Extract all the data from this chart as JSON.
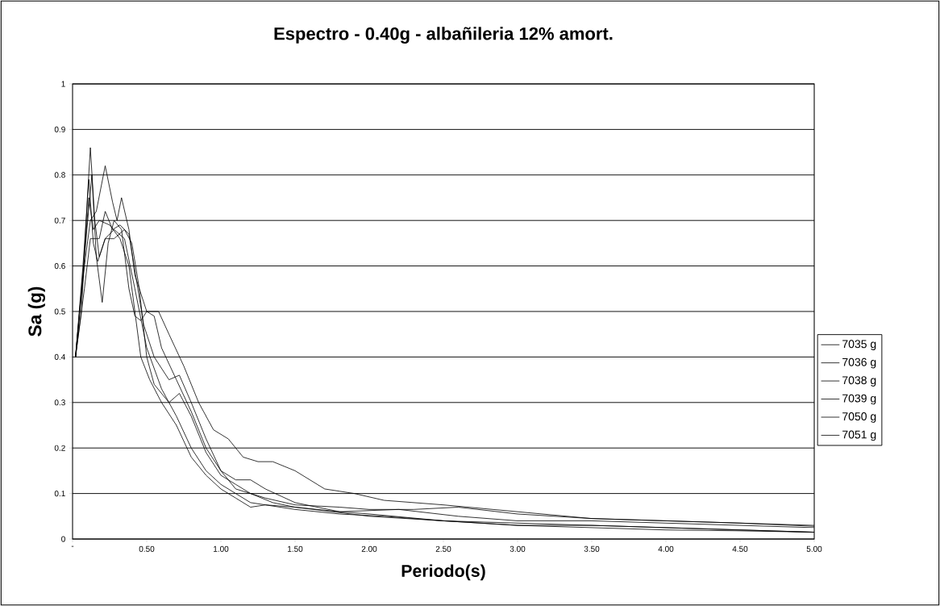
{
  "chart_data": {
    "type": "line",
    "title": "Espectro - 0.40g - albañileria 12% amort.",
    "xlabel": "Periodo(s)",
    "ylabel": "Sa (g)",
    "xlim": [
      0,
      5
    ],
    "ylim": [
      0,
      1
    ],
    "xticks": [
      {
        "value": 0,
        "label": "-"
      },
      {
        "value": 0.5,
        "label": "0.50"
      },
      {
        "value": 1,
        "label": "1.00"
      },
      {
        "value": 1.5,
        "label": "1.50"
      },
      {
        "value": 2,
        "label": "2.00"
      },
      {
        "value": 2.5,
        "label": "2.50"
      },
      {
        "value": 3,
        "label": "3.00"
      },
      {
        "value": 3.5,
        "label": "3.50"
      },
      {
        "value": 4,
        "label": "4.00"
      },
      {
        "value": 4.5,
        "label": "4.50"
      },
      {
        "value": 5,
        "label": "5.00"
      }
    ],
    "yticks": [
      0,
      0.1,
      0.2,
      0.3,
      0.4,
      0.5,
      0.6,
      0.7,
      0.8,
      0.9,
      1
    ],
    "grid": "y",
    "legend": "right",
    "marker": "none",
    "line_style": "solid",
    "series": [
      {
        "name": "7035 g",
        "color": "#000000",
        "x": [
          0.02,
          0.06,
          0.1,
          0.12,
          0.15,
          0.18,
          0.22,
          0.28,
          0.35,
          0.42,
          0.5,
          0.6,
          0.7,
          0.8,
          0.9,
          1.0,
          1.1,
          1.2,
          1.3,
          1.5,
          1.8,
          2.0,
          2.5,
          3.0,
          3.5,
          4.0,
          4.5,
          5.0
        ],
        "values": [
          0.4,
          0.5,
          0.75,
          0.86,
          0.7,
          0.62,
          0.66,
          0.68,
          0.66,
          0.55,
          0.42,
          0.33,
          0.27,
          0.2,
          0.15,
          0.12,
          0.1,
          0.08,
          0.075,
          0.07,
          0.06,
          0.055,
          0.04,
          0.035,
          0.03,
          0.025,
          0.02,
          0.015
        ]
      },
      {
        "name": "7036 g",
        "color": "#000000",
        "x": [
          0.02,
          0.08,
          0.12,
          0.16,
          0.22,
          0.27,
          0.3,
          0.33,
          0.38,
          0.42,
          0.5,
          0.58,
          0.65,
          0.75,
          0.85,
          0.95,
          1.05,
          1.15,
          1.25,
          1.35,
          1.5,
          1.7,
          1.8,
          1.9,
          2.1,
          2.5,
          3.0,
          3.5,
          4.0,
          4.5,
          5.0
        ],
        "values": [
          0.4,
          0.6,
          0.7,
          0.72,
          0.82,
          0.74,
          0.7,
          0.75,
          0.68,
          0.58,
          0.5,
          0.5,
          0.45,
          0.38,
          0.3,
          0.24,
          0.22,
          0.18,
          0.17,
          0.17,
          0.15,
          0.11,
          0.105,
          0.1,
          0.085,
          0.075,
          0.06,
          0.045,
          0.04,
          0.035,
          0.03
        ]
      },
      {
        "name": "7038 g",
        "color": "#000000",
        "x": [
          0.02,
          0.08,
          0.13,
          0.16,
          0.2,
          0.24,
          0.28,
          0.33,
          0.38,
          0.42,
          0.46,
          0.5,
          0.55,
          0.6,
          0.7,
          0.8,
          0.9,
          1.0,
          1.1,
          1.2,
          1.3,
          1.5,
          1.8,
          2.2,
          2.6,
          3.0,
          3.5,
          4.0,
          4.5,
          5.0
        ],
        "values": [
          0.4,
          0.62,
          0.8,
          0.62,
          0.52,
          0.65,
          0.7,
          0.68,
          0.55,
          0.49,
          0.48,
          0.5,
          0.49,
          0.42,
          0.35,
          0.28,
          0.2,
          0.15,
          0.13,
          0.13,
          0.11,
          0.08,
          0.06,
          0.065,
          0.05,
          0.04,
          0.04,
          0.035,
          0.03,
          0.025
        ]
      },
      {
        "name": "7039 g",
        "color": "#000000",
        "x": [
          0.02,
          0.07,
          0.11,
          0.14,
          0.17,
          0.22,
          0.28,
          0.35,
          0.4,
          0.45,
          0.5,
          0.55,
          0.65,
          0.72,
          0.8,
          0.9,
          1.0,
          1.1,
          1.2,
          1.35,
          1.5,
          2.0,
          2.5,
          3.0,
          3.5,
          4.0,
          4.5,
          5.0
        ],
        "values": [
          0.4,
          0.6,
          0.79,
          0.65,
          0.61,
          0.66,
          0.66,
          0.68,
          0.65,
          0.55,
          0.4,
          0.34,
          0.3,
          0.32,
          0.27,
          0.19,
          0.14,
          0.12,
          0.1,
          0.08,
          0.07,
          0.05,
          0.04,
          0.03,
          0.025,
          0.02,
          0.018,
          0.015
        ]
      },
      {
        "name": "7050 g",
        "color": "#000000",
        "x": [
          0.02,
          0.08,
          0.12,
          0.18,
          0.22,
          0.27,
          0.32,
          0.38,
          0.43,
          0.48,
          0.55,
          0.65,
          0.72,
          0.8,
          0.9,
          1.0,
          1.1,
          1.2,
          1.3,
          1.5,
          1.8,
          2.0,
          2.3,
          2.6,
          3.0,
          3.5,
          4.0,
          4.5,
          5.0
        ],
        "values": [
          0.4,
          0.55,
          0.66,
          0.66,
          0.72,
          0.68,
          0.69,
          0.67,
          0.57,
          0.47,
          0.4,
          0.35,
          0.36,
          0.3,
          0.22,
          0.15,
          0.11,
          0.1,
          0.09,
          0.075,
          0.07,
          0.065,
          0.065,
          0.07,
          0.055,
          0.045,
          0.04,
          0.035,
          0.028
        ]
      },
      {
        "name": "7051 g",
        "color": "#000000",
        "x": [
          0.02,
          0.07,
          0.11,
          0.14,
          0.18,
          0.25,
          0.32,
          0.38,
          0.42,
          0.46,
          0.52,
          0.6,
          0.7,
          0.8,
          0.9,
          1.0,
          1.1,
          1.2,
          1.3,
          1.5,
          1.8,
          2.1,
          2.5,
          3.0,
          3.5,
          4.0,
          4.5,
          5.0
        ],
        "values": [
          0.4,
          0.58,
          0.75,
          0.68,
          0.7,
          0.69,
          0.66,
          0.6,
          0.5,
          0.4,
          0.35,
          0.3,
          0.25,
          0.18,
          0.14,
          0.11,
          0.09,
          0.07,
          0.075,
          0.065,
          0.055,
          0.05,
          0.04,
          0.03,
          0.03,
          0.025,
          0.02,
          0.015
        ]
      }
    ]
  }
}
